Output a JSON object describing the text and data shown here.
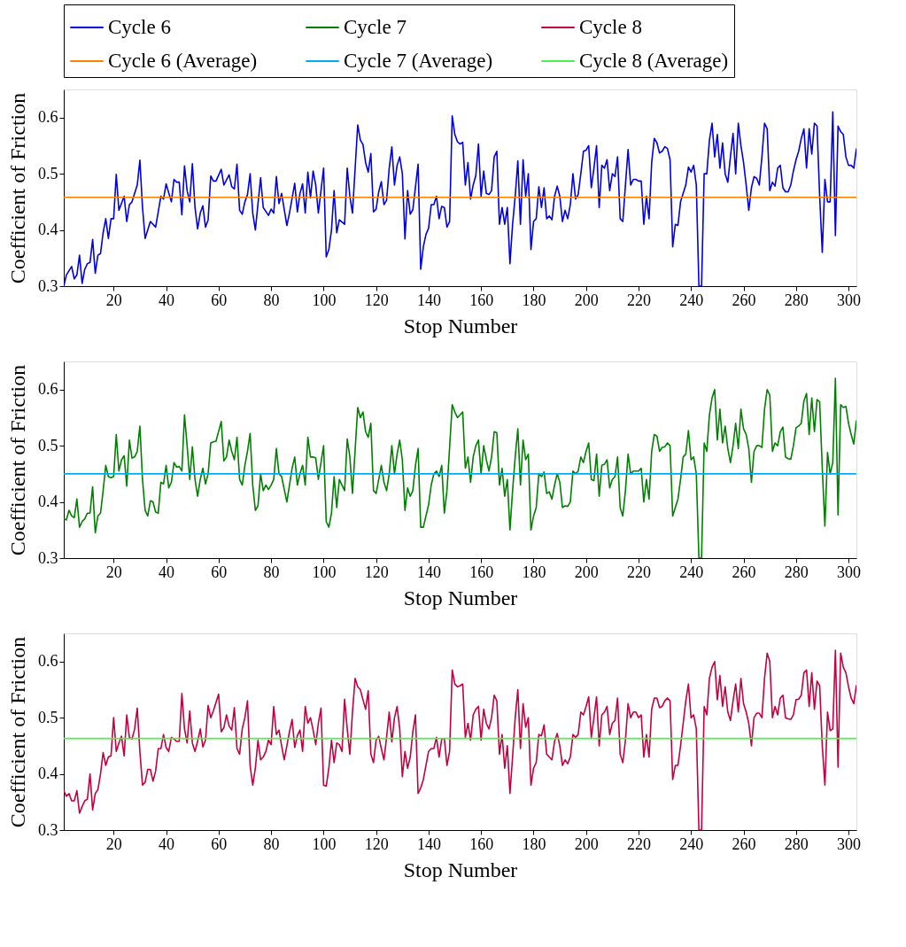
{
  "chart_data": [
    {
      "type": "line",
      "xlabel": "Stop Number",
      "ylabel": "Coefficient of Friction",
      "xlim": [
        1,
        303
      ],
      "ylim": [
        0.3,
        0.65
      ],
      "xticks": [
        20,
        40,
        60,
        80,
        100,
        120,
        140,
        160,
        180,
        200,
        220,
        240,
        260,
        280,
        300
      ],
      "yticks": [
        0.3,
        0.4,
        0.5,
        0.6
      ],
      "grid": false,
      "legend": "top",
      "line_style": "solid",
      "marker": "none",
      "series": [
        {
          "name": "Cycle 6",
          "color": "#0000e6",
          "x": [
            1,
            2,
            4,
            5,
            6,
            7,
            8,
            9,
            10,
            11,
            12,
            13,
            14,
            15,
            16,
            17,
            18,
            19,
            20,
            21,
            22,
            24,
            25,
            26,
            27,
            29,
            30,
            31,
            32,
            34,
            36,
            38,
            39,
            40,
            42,
            43,
            44,
            45,
            46,
            47,
            48,
            49,
            50,
            51,
            52,
            53,
            54,
            55,
            56,
            57,
            58,
            59,
            61,
            62,
            64,
            65,
            66,
            67,
            68,
            69,
            70,
            71,
            72,
            73,
            74,
            76,
            77,
            79,
            80,
            81,
            82,
            83,
            84,
            86,
            87,
            89,
            90,
            91,
            92,
            93,
            94,
            95,
            96,
            97,
            98,
            100,
            101,
            102,
            103,
            104,
            105,
            106,
            108,
            109,
            110,
            111,
            113,
            114,
            115,
            116,
            117,
            118,
            119,
            120,
            121,
            122,
            123,
            124,
            125,
            126,
            127,
            128,
            129,
            130,
            131,
            132,
            133,
            134,
            136,
            137,
            138,
            139,
            140,
            141,
            142,
            143,
            144,
            145,
            146,
            147,
            148,
            149,
            150,
            151,
            152,
            153,
            154,
            155,
            156,
            157,
            158,
            159,
            160,
            161,
            162,
            163,
            164,
            165,
            166,
            167,
            168,
            169,
            170,
            171,
            172,
            173,
            174,
            175,
            176,
            177,
            178,
            179,
            180,
            181,
            182,
            183,
            184,
            185,
            186,
            187,
            188,
            189,
            190,
            191,
            192,
            193,
            194,
            195,
            196,
            197,
            198,
            199,
            200,
            201,
            202,
            203,
            204,
            205,
            206,
            207,
            208,
            209,
            210,
            211,
            212,
            213,
            214,
            215,
            216,
            217,
            218,
            219,
            220,
            221,
            222,
            223,
            224,
            225,
            226,
            227,
            228,
            229,
            230,
            231,
            232,
            233,
            234,
            235,
            236,
            237,
            238,
            239,
            240,
            241,
            242,
            243,
            244,
            245,
            246,
            247,
            248,
            249,
            250,
            251,
            252,
            253,
            254,
            255,
            256,
            257,
            258,
            259,
            260,
            261,
            262,
            263,
            264,
            265,
            266,
            267,
            268,
            269,
            270,
            271,
            272,
            273,
            274,
            275,
            276,
            277,
            278,
            279,
            280,
            281,
            282,
            283,
            284,
            285,
            286,
            287,
            288,
            289,
            290,
            291,
            292,
            293,
            294,
            295,
            296,
            297,
            298,
            299,
            300,
            301,
            302,
            303
          ],
          "values": [
            0.3,
            0.32,
            0.335,
            0.313,
            0.32,
            0.355,
            0.305,
            0.33,
            0.34,
            0.342,
            0.383,
            0.323,
            0.355,
            0.358,
            0.395,
            0.42,
            0.385,
            0.42,
            0.42,
            0.499,
            0.435,
            0.46,
            0.415,
            0.445,
            0.45,
            0.48,
            0.524,
            0.44,
            0.385,
            0.415,
            0.405,
            0.46,
            0.455,
            0.482,
            0.45,
            0.49,
            0.485,
            0.485,
            0.427,
            0.514,
            0.47,
            0.45,
            0.518,
            0.44,
            0.402,
            0.43,
            0.443,
            0.405,
            0.418,
            0.496,
            0.487,
            0.487,
            0.508,
            0.48,
            0.498,
            0.477,
            0.473,
            0.517,
            0.435,
            0.428,
            0.45,
            0.463,
            0.5,
            0.43,
            0.4,
            0.493,
            0.44,
            0.426,
            0.437,
            0.43,
            0.495,
            0.447,
            0.465,
            0.408,
            0.43,
            0.483,
            0.432,
            0.465,
            0.482,
            0.43,
            0.503,
            0.457,
            0.505,
            0.48,
            0.43,
            0.51,
            0.352,
            0.365,
            0.4,
            0.47,
            0.395,
            0.418,
            0.41,
            0.51,
            0.46,
            0.43,
            0.587,
            0.56,
            0.552,
            0.52,
            0.503,
            0.536,
            0.432,
            0.437,
            0.468,
            0.486,
            0.445,
            0.453,
            0.51,
            0.548,
            0.48,
            0.515,
            0.53,
            0.5,
            0.384,
            0.47,
            0.428,
            0.436,
            0.517,
            0.33,
            0.37,
            0.392,
            0.403,
            0.445,
            0.445,
            0.46,
            0.42,
            0.442,
            0.44,
            0.405,
            0.415,
            0.603,
            0.57,
            0.557,
            0.553,
            0.556,
            0.48,
            0.52,
            0.455,
            0.48,
            0.497,
            0.553,
            0.46,
            0.505,
            0.465,
            0.463,
            0.47,
            0.53,
            0.54,
            0.41,
            0.44,
            0.41,
            0.44,
            0.34,
            0.41,
            0.46,
            0.523,
            0.41,
            0.525,
            0.46,
            0.5,
            0.365,
            0.415,
            0.42,
            0.477,
            0.44,
            0.475,
            0.42,
            0.425,
            0.418,
            0.46,
            0.478,
            0.46,
            0.415,
            0.435,
            0.42,
            0.445,
            0.5,
            0.455,
            0.463,
            0.5,
            0.54,
            0.542,
            0.55,
            0.475,
            0.51,
            0.55,
            0.44,
            0.515,
            0.51,
            0.525,
            0.47,
            0.5,
            0.495,
            0.53,
            0.42,
            0.415,
            0.48,
            0.543,
            0.48,
            0.49,
            0.49,
            0.487,
            0.487,
            0.41,
            0.46,
            0.42,
            0.52,
            0.563,
            0.555,
            0.537,
            0.54,
            0.548,
            0.545,
            0.525,
            0.37,
            0.41,
            0.408,
            0.45,
            0.465,
            0.48,
            0.512,
            0.503,
            0.515,
            0.48,
            0.3,
            0.3,
            0.5,
            0.5,
            0.56,
            0.59,
            0.53,
            0.57,
            0.51,
            0.555,
            0.5,
            0.485,
            0.53,
            0.572,
            0.5,
            0.59,
            0.55,
            0.52,
            0.48,
            0.435,
            0.475,
            0.495,
            0.492,
            0.48,
            0.53,
            0.59,
            0.58,
            0.47,
            0.485,
            0.478,
            0.51,
            0.515,
            0.475,
            0.468,
            0.468,
            0.48,
            0.505,
            0.525,
            0.54,
            0.563,
            0.58,
            0.51,
            0.58,
            0.535,
            0.59,
            0.585,
            0.46,
            0.36,
            0.49,
            0.45,
            0.45,
            0.61,
            0.39,
            0.585,
            0.575,
            0.57,
            0.53,
            0.515,
            0.515,
            0.51,
            0.545
          ]
        },
        {
          "name": "Cycle 6 (Average)",
          "color": "#ff8000",
          "x": [
            1,
            303
          ],
          "values": [
            0.458,
            0.458
          ]
        }
      ]
    },
    {
      "type": "line",
      "xlabel": "Stop Number",
      "ylabel": "Coefficient of Friction",
      "xlim": [
        1,
        303
      ],
      "ylim": [
        0.3,
        0.65
      ],
      "xticks": [
        20,
        40,
        60,
        80,
        100,
        120,
        140,
        160,
        180,
        200,
        220,
        240,
        260,
        280,
        300
      ],
      "yticks": [
        0.3,
        0.4,
        0.5,
        0.6
      ],
      "grid": false,
      "legend": "top",
      "line_style": "solid",
      "marker": "none",
      "series": [
        {
          "name": "Cycle 7",
          "color": "#008000",
          "x": [
            1,
            2,
            3,
            4,
            5,
            6,
            7,
            8,
            9,
            10,
            11,
            12,
            13,
            14,
            15,
            16,
            17,
            18,
            19,
            20,
            21,
            22,
            23,
            24,
            25,
            26,
            27,
            28,
            29,
            30,
            31,
            32,
            33,
            34,
            35,
            36,
            37,
            38,
            39,
            40,
            41,
            42,
            43,
            44,
            45,
            46,
            47,
            48,
            49,
            50,
            51,
            52,
            53,
            54,
            55,
            56,
            57,
            58,
            59,
            61,
            62,
            63,
            64,
            65,
            66,
            67,
            68,
            69,
            70,
            71,
            72,
            73,
            74,
            75,
            76,
            77,
            78,
            79,
            80,
            81,
            82,
            83,
            84,
            86,
            87,
            88,
            89,
            90,
            91,
            92,
            93,
            94,
            95,
            96,
            97,
            98,
            99,
            100,
            101,
            102,
            103,
            104,
            105,
            106,
            107,
            108,
            109,
            110,
            111,
            113,
            114,
            115,
            116,
            117,
            118,
            119,
            120,
            122,
            123,
            124,
            125,
            126,
            127,
            128,
            129,
            130,
            131,
            132,
            133,
            134,
            135,
            136,
            137,
            138,
            140,
            141,
            142,
            143,
            144,
            145,
            146,
            147,
            149,
            150,
            151,
            152,
            153,
            154,
            155,
            156,
            157,
            158,
            159,
            160,
            161,
            162,
            163,
            164,
            165,
            166,
            167,
            168,
            169,
            170,
            171,
            172,
            173,
            174,
            175,
            176,
            177,
            178,
            179,
            180,
            181,
            182,
            183,
            184,
            185,
            186,
            187,
            188,
            189,
            190,
            191,
            192,
            193,
            194,
            195,
            196,
            197,
            198,
            199,
            200,
            201,
            202,
            203,
            204,
            205,
            206,
            207,
            208,
            209,
            210,
            211,
            212,
            213,
            214,
            215,
            216,
            217,
            218,
            219,
            220,
            221,
            222,
            223,
            224,
            225,
            226,
            227,
            228,
            229,
            230,
            231,
            232,
            233,
            234,
            235,
            236,
            237,
            238,
            239,
            240,
            241,
            242,
            243,
            244,
            245,
            246,
            247,
            248,
            249,
            250,
            251,
            252,
            253,
            254,
            255,
            256,
            257,
            258,
            259,
            260,
            261,
            262,
            263,
            264,
            265,
            266,
            267,
            268,
            269,
            270,
            271,
            272,
            273,
            274,
            275,
            276,
            277,
            278,
            279,
            280,
            281,
            282,
            283,
            284,
            285,
            286,
            287,
            288,
            289,
            290,
            291,
            292,
            293,
            294,
            295,
            296,
            297,
            298,
            299,
            300,
            301,
            302,
            303
          ],
          "values": [
            0.37,
            0.368,
            0.385,
            0.375,
            0.372,
            0.405,
            0.355,
            0.365,
            0.37,
            0.38,
            0.38,
            0.427,
            0.345,
            0.375,
            0.38,
            0.42,
            0.465,
            0.445,
            0.443,
            0.445,
            0.52,
            0.455,
            0.475,
            0.482,
            0.428,
            0.51,
            0.478,
            0.48,
            0.49,
            0.535,
            0.44,
            0.385,
            0.375,
            0.402,
            0.4,
            0.382,
            0.38,
            0.435,
            0.432,
            0.465,
            0.425,
            0.435,
            0.47,
            0.462,
            0.463,
            0.455,
            0.555,
            0.5,
            0.44,
            0.498,
            0.44,
            0.41,
            0.44,
            0.46,
            0.432,
            0.45,
            0.505,
            0.507,
            0.508,
            0.543,
            0.473,
            0.48,
            0.51,
            0.49,
            0.475,
            0.515,
            0.44,
            0.43,
            0.465,
            0.49,
            0.522,
            0.43,
            0.385,
            0.393,
            0.45,
            0.42,
            0.43,
            0.422,
            0.43,
            0.44,
            0.495,
            0.45,
            0.445,
            0.4,
            0.43,
            0.46,
            0.48,
            0.43,
            0.45,
            0.465,
            0.43,
            0.515,
            0.48,
            0.48,
            0.478,
            0.44,
            0.47,
            0.5,
            0.365,
            0.355,
            0.38,
            0.445,
            0.39,
            0.44,
            0.43,
            0.42,
            0.512,
            0.48,
            0.415,
            0.568,
            0.55,
            0.56,
            0.525,
            0.515,
            0.54,
            0.42,
            0.415,
            0.465,
            0.435,
            0.42,
            0.45,
            0.5,
            0.45,
            0.485,
            0.51,
            0.475,
            0.385,
            0.425,
            0.41,
            0.42,
            0.465,
            0.495,
            0.355,
            0.355,
            0.395,
            0.43,
            0.45,
            0.455,
            0.445,
            0.465,
            0.38,
            0.42,
            0.573,
            0.56,
            0.55,
            0.555,
            0.56,
            0.46,
            0.48,
            0.435,
            0.48,
            0.5,
            0.51,
            0.45,
            0.5,
            0.475,
            0.455,
            0.48,
            0.525,
            0.523,
            0.43,
            0.46,
            0.41,
            0.44,
            0.35,
            0.42,
            0.48,
            0.53,
            0.43,
            0.51,
            0.475,
            0.485,
            0.35,
            0.375,
            0.39,
            0.45,
            0.445,
            0.453,
            0.415,
            0.418,
            0.405,
            0.43,
            0.45,
            0.435,
            0.39,
            0.393,
            0.392,
            0.4,
            0.455,
            0.45,
            0.455,
            0.48,
            0.47,
            0.49,
            0.505,
            0.44,
            0.438,
            0.485,
            0.41,
            0.465,
            0.467,
            0.475,
            0.425,
            0.44,
            0.445,
            0.48,
            0.39,
            0.375,
            0.42,
            0.485,
            0.45,
            0.455,
            0.455,
            0.455,
            0.46,
            0.4,
            0.44,
            0.405,
            0.49,
            0.52,
            0.517,
            0.49,
            0.497,
            0.498,
            0.505,
            0.5,
            0.375,
            0.39,
            0.405,
            0.44,
            0.48,
            0.485,
            0.527,
            0.475,
            0.48,
            0.45,
            0.3,
            0.3,
            0.505,
            0.49,
            0.555,
            0.585,
            0.6,
            0.51,
            0.565,
            0.505,
            0.535,
            0.495,
            0.47,
            0.5,
            0.54,
            0.495,
            0.565,
            0.53,
            0.52,
            0.495,
            0.435,
            0.49,
            0.5,
            0.5,
            0.497,
            0.565,
            0.6,
            0.59,
            0.49,
            0.505,
            0.5,
            0.525,
            0.533,
            0.48,
            0.477,
            0.476,
            0.5,
            0.532,
            0.535,
            0.54,
            0.58,
            0.593,
            0.52,
            0.585,
            0.525,
            0.582,
            0.578,
            0.46,
            0.357,
            0.488,
            0.45,
            0.47,
            0.62,
            0.377,
            0.573,
            0.568,
            0.57,
            0.54,
            0.52,
            0.503,
            0.545
          ]
        },
        {
          "name": "Cycle 7 (Average)",
          "color": "#00aeef",
          "x": [
            1,
            303
          ],
          "values": [
            0.45,
            0.45
          ]
        }
      ]
    },
    {
      "type": "line",
      "xlabel": "Stop Number",
      "ylabel": "Coefficient of Friction",
      "xlim": [
        1,
        303
      ],
      "ylim": [
        0.3,
        0.65
      ],
      "xticks": [
        20,
        40,
        60,
        80,
        100,
        120,
        140,
        160,
        180,
        200,
        220,
        240,
        260,
        280,
        300
      ],
      "yticks": [
        0.3,
        0.4,
        0.5,
        0.6
      ],
      "grid": false,
      "legend": "top",
      "line_style": "solid",
      "marker": "none",
      "series": [
        {
          "name": "Cycle 8",
          "color": "#c4003f",
          "x": [
            1,
            2,
            3,
            4,
            5,
            6,
            7,
            8,
            9,
            10,
            11,
            12,
            13,
            14,
            15,
            16,
            17,
            18,
            19,
            20,
            21,
            22,
            23,
            24,
            25,
            26,
            27,
            28,
            29,
            30,
            31,
            32,
            33,
            34,
            35,
            36,
            37,
            38,
            39,
            40,
            41,
            42,
            43,
            44,
            45,
            46,
            47,
            48,
            49,
            50,
            51,
            52,
            53,
            54,
            55,
            56,
            57,
            58,
            59,
            60,
            61,
            62,
            63,
            64,
            65,
            66,
            67,
            68,
            69,
            70,
            71,
            72,
            73,
            74,
            75,
            76,
            77,
            78,
            79,
            80,
            81,
            82,
            83,
            84,
            85,
            86,
            87,
            88,
            89,
            90,
            91,
            92,
            93,
            94,
            95,
            96,
            97,
            98,
            99,
            100,
            101,
            102,
            103,
            104,
            105,
            106,
            107,
            108,
            109,
            110,
            111,
            112,
            113,
            114,
            115,
            116,
            117,
            118,
            119,
            120,
            121,
            122,
            123,
            124,
            125,
            126,
            127,
            128,
            129,
            130,
            131,
            132,
            133,
            134,
            135,
            136,
            137,
            138,
            140,
            141,
            142,
            143,
            144,
            145,
            146,
            147,
            148,
            149,
            150,
            151,
            152,
            153,
            154,
            155,
            156,
            157,
            158,
            159,
            160,
            161,
            162,
            163,
            164,
            165,
            166,
            167,
            168,
            169,
            170,
            171,
            172,
            173,
            174,
            175,
            176,
            177,
            178,
            179,
            180,
            181,
            182,
            183,
            184,
            185,
            186,
            187,
            188,
            189,
            190,
            191,
            192,
            193,
            194,
            195,
            196,
            197,
            198,
            199,
            200,
            201,
            202,
            203,
            204,
            205,
            206,
            207,
            208,
            209,
            210,
            211,
            212,
            213,
            214,
            215,
            216,
            217,
            218,
            219,
            220,
            221,
            222,
            223,
            224,
            225,
            226,
            227,
            228,
            229,
            230,
            231,
            232,
            233,
            234,
            235,
            236,
            237,
            238,
            239,
            240,
            241,
            242,
            243,
            244,
            245,
            246,
            247,
            248,
            249,
            250,
            251,
            252,
            253,
            254,
            255,
            256,
            257,
            258,
            259,
            260,
            261,
            262,
            263,
            264,
            265,
            266,
            267,
            268,
            269,
            270,
            271,
            272,
            273,
            274,
            275,
            276,
            277,
            278,
            279,
            280,
            281,
            282,
            283,
            284,
            285,
            286,
            287,
            288,
            289,
            290,
            291,
            292,
            293,
            294,
            295,
            296,
            297,
            298,
            299,
            300,
            301,
            302,
            303
          ],
          "values": [
            0.37,
            0.36,
            0.365,
            0.352,
            0.352,
            0.37,
            0.33,
            0.342,
            0.352,
            0.355,
            0.4,
            0.336,
            0.365,
            0.372,
            0.4,
            0.438,
            0.415,
            0.43,
            0.432,
            0.5,
            0.44,
            0.455,
            0.467,
            0.432,
            0.505,
            0.465,
            0.462,
            0.48,
            0.517,
            0.44,
            0.38,
            0.385,
            0.408,
            0.408,
            0.387,
            0.405,
            0.445,
            0.445,
            0.47,
            0.447,
            0.44,
            0.465,
            0.462,
            0.458,
            0.458,
            0.543,
            0.48,
            0.455,
            0.512,
            0.455,
            0.44,
            0.458,
            0.48,
            0.448,
            0.46,
            0.522,
            0.5,
            0.512,
            0.527,
            0.542,
            0.475,
            0.482,
            0.505,
            0.485,
            0.478,
            0.518,
            0.445,
            0.435,
            0.48,
            0.5,
            0.53,
            0.415,
            0.38,
            0.41,
            0.46,
            0.425,
            0.43,
            0.44,
            0.46,
            0.452,
            0.52,
            0.47,
            0.478,
            0.45,
            0.425,
            0.45,
            0.475,
            0.497,
            0.447,
            0.468,
            0.478,
            0.44,
            0.52,
            0.49,
            0.5,
            0.478,
            0.452,
            0.49,
            0.517,
            0.38,
            0.378,
            0.41,
            0.46,
            0.42,
            0.455,
            0.452,
            0.44,
            0.533,
            0.48,
            0.435,
            0.51,
            0.57,
            0.555,
            0.55,
            0.532,
            0.515,
            0.548,
            0.435,
            0.42,
            0.46,
            0.467,
            0.445,
            0.425,
            0.465,
            0.51,
            0.457,
            0.5,
            0.52,
            0.48,
            0.395,
            0.44,
            0.41,
            0.43,
            0.475,
            0.505,
            0.365,
            0.375,
            0.39,
            0.44,
            0.445,
            0.445,
            0.465,
            0.43,
            0.462,
            0.463,
            0.415,
            0.44,
            0.585,
            0.56,
            0.555,
            0.557,
            0.56,
            0.465,
            0.49,
            0.46,
            0.505,
            0.515,
            0.52,
            0.46,
            0.515,
            0.49,
            0.48,
            0.5,
            0.54,
            0.53,
            0.435,
            0.47,
            0.41,
            0.45,
            0.365,
            0.43,
            0.5,
            0.55,
            0.445,
            0.525,
            0.483,
            0.5,
            0.38,
            0.41,
            0.42,
            0.47,
            0.468,
            0.487,
            0.435,
            0.43,
            0.425,
            0.458,
            0.472,
            0.45,
            0.415,
            0.425,
            0.418,
            0.43,
            0.47,
            0.465,
            0.47,
            0.51,
            0.505,
            0.52,
            0.537,
            0.465,
            0.5,
            0.537,
            0.45,
            0.505,
            0.51,
            0.52,
            0.47,
            0.49,
            0.495,
            0.535,
            0.435,
            0.42,
            0.46,
            0.525,
            0.5,
            0.51,
            0.51,
            0.5,
            0.505,
            0.43,
            0.47,
            0.43,
            0.515,
            0.535,
            0.535,
            0.518,
            0.52,
            0.53,
            0.535,
            0.53,
            0.39,
            0.415,
            0.415,
            0.45,
            0.49,
            0.53,
            0.56,
            0.5,
            0.505,
            0.48,
            0.3,
            0.3,
            0.52,
            0.505,
            0.57,
            0.59,
            0.6,
            0.532,
            0.575,
            0.52,
            0.555,
            0.51,
            0.495,
            0.53,
            0.56,
            0.51,
            0.57,
            0.525,
            0.51,
            0.49,
            0.45,
            0.5,
            0.508,
            0.508,
            0.5,
            0.57,
            0.615,
            0.6,
            0.5,
            0.52,
            0.505,
            0.535,
            0.54,
            0.5,
            0.498,
            0.497,
            0.505,
            0.532,
            0.533,
            0.54,
            0.58,
            0.585,
            0.52,
            0.58,
            0.515,
            0.565,
            0.557,
            0.45,
            0.38,
            0.51,
            0.477,
            0.48,
            0.62,
            0.412,
            0.615,
            0.59,
            0.58,
            0.555,
            0.535,
            0.525,
            0.558
          ]
        },
        {
          "name": "Cycle 8 (Average)",
          "color": "#4cf04c",
          "x": [
            1,
            303
          ],
          "values": [
            0.463,
            0.463
          ]
        }
      ]
    }
  ]
}
